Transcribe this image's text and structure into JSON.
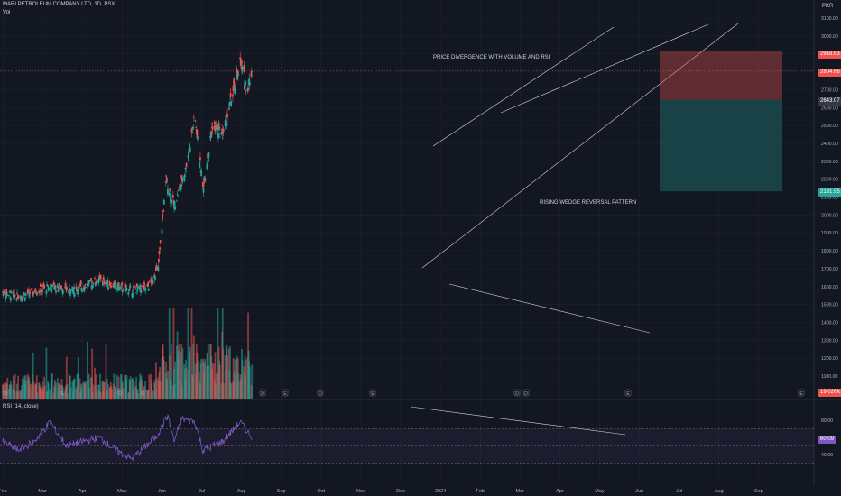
{
  "header": {
    "symbol_line": "MARI PETROLEUM COMPANY LTD, 1D, PSX",
    "vol_label": "Vol",
    "currency": "PKR"
  },
  "rsi_header": "RSI (14, close)",
  "annotations": {
    "divergence": "PRICE DIVERGENCE WITH VOLUME AND RSI",
    "wedge": "RISING WEDGE REVERSAL PATTERN"
  },
  "price_tags": {
    "target_high": "2918.63",
    "current": "2804.66",
    "entry": "2643.07",
    "stop_low": "2131.95",
    "volume": "19.026K",
    "rsi": "60.09"
  },
  "colors": {
    "bg": "#131722",
    "up": "#26a69a",
    "down": "#ef5350",
    "rsi": "#7e57c2",
    "grid": "#1e222d"
  },
  "chart_data": {
    "type": "candlestick",
    "price_axis": {
      "ticks": [
        "3100.00",
        "3000.00",
        "2900.00",
        "2800.00",
        "2700.00",
        "2600.00",
        "2500.00",
        "2400.00",
        "2300.00",
        "2200.00",
        "2100.00",
        "2000.00",
        "1900.00",
        "1800.00",
        "1700.00",
        "1600.00",
        "1500.00",
        "1400.00",
        "1300.00",
        "1200.00",
        "1100.00"
      ]
    },
    "rsi_axis": {
      "ticks": [
        "80.00",
        "40.00"
      ]
    },
    "time_axis": [
      "Feb",
      "Mar",
      "Apr",
      "May",
      "Jun",
      "Jul",
      "Aug",
      "Sep",
      "Oct",
      "Nov",
      "Dec",
      "2024",
      "Feb",
      "Mar",
      "Apr",
      "May",
      "Jun",
      "Jul",
      "Aug",
      "Sep"
    ],
    "close_path_waypoints": [
      [
        "2023-02-01",
        1570
      ],
      [
        "2023-03-01",
        1545
      ],
      [
        "2023-04-01",
        1570
      ],
      [
        "2023-05-01",
        1600
      ],
      [
        "2023-06-15",
        1580
      ],
      [
        "2023-08-01",
        1640
      ],
      [
        "2023-09-01",
        1600
      ],
      [
        "2023-10-01",
        1580
      ],
      [
        "2023-11-01",
        1600
      ],
      [
        "2023-11-20",
        1700
      ],
      [
        "2023-12-05",
        2200
      ],
      [
        "2023-12-20",
        2050
      ],
      [
        "2024-01-10",
        2250
      ],
      [
        "2024-01-28",
        2550
      ],
      [
        "2024-02-12",
        2150
      ],
      [
        "2024-03-01",
        2500
      ],
      [
        "2024-03-20",
        2450
      ],
      [
        "2024-04-10",
        2700
      ],
      [
        "2024-04-22",
        2850
      ],
      [
        "2024-05-05",
        2700
      ],
      [
        "2024-05-14",
        2805
      ]
    ],
    "rsi_path_waypoints": [
      [
        "2023-02-01",
        55
      ],
      [
        "2023-03-01",
        45
      ],
      [
        "2023-04-01",
        55
      ],
      [
        "2023-05-01",
        78
      ],
      [
        "2023-06-01",
        50
      ],
      [
        "2023-08-01",
        60
      ],
      [
        "2023-09-01",
        45
      ],
      [
        "2023-10-01",
        35
      ],
      [
        "2023-11-15",
        60
      ],
      [
        "2023-12-08",
        85
      ],
      [
        "2023-12-20",
        55
      ],
      [
        "2024-01-03",
        82
      ],
      [
        "2024-01-28",
        78
      ],
      [
        "2024-02-12",
        45
      ],
      [
        "2024-03-20",
        55
      ],
      [
        "2024-04-22",
        78
      ],
      [
        "2024-05-14",
        60
      ]
    ]
  }
}
